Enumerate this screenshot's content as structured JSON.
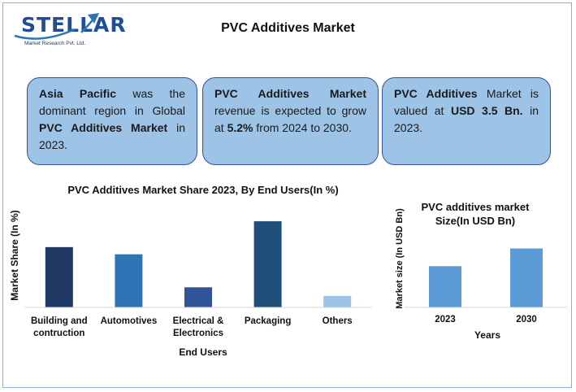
{
  "logo": {
    "word": "STELLAR",
    "subtitle": "Market Research Pvt. Ltd."
  },
  "header": {
    "title": "PVC Additives Market"
  },
  "info_boxes": [
    {
      "parts": [
        {
          "text": "Asia Pacific",
          "bold": true
        },
        {
          "text": " was the dominant region in Global ",
          "bold": false
        },
        {
          "text": "PVC Additives Market",
          "bold": true
        },
        {
          "text": " in 2023.",
          "bold": false
        }
      ]
    },
    {
      "parts": [
        {
          "text": "PVC Additives Market",
          "bold": true
        },
        {
          "text": " revenue is expected to grow at ",
          "bold": false
        },
        {
          "text": "5.2%",
          "bold": true
        },
        {
          "text": " from 2024 to 2030.",
          "bold": false
        }
      ]
    },
    {
      "parts": [
        {
          "text": "PVC Additives",
          "bold": true
        },
        {
          "text": " Market is valued at ",
          "bold": false
        },
        {
          "text": "USD 3.5 Bn.",
          "bold": true
        },
        {
          "text": " in 2023.",
          "bold": false
        }
      ]
    }
  ],
  "chart_data": [
    {
      "type": "bar",
      "title": "PVC Additives Market Share 2023, By End Users(In %)",
      "xlabel": "End Users",
      "ylabel": "Market Share (In %)",
      "categories": [
        "Building and contruction",
        "Automotives",
        "Electrical & Electronics",
        "Packaging",
        "Others"
      ],
      "category_lines": [
        [
          "Building and",
          "contruction"
        ],
        [
          "Automotives"
        ],
        [
          "Electrical &",
          "Electronics"
        ],
        [
          "Packaging"
        ],
        [
          "Others"
        ]
      ],
      "values": [
        21,
        18.5,
        7,
        30,
        4
      ],
      "ylim": [
        0,
        32
      ],
      "colors": [
        "#1f3864",
        "#2e75b6",
        "#2f5597",
        "#1f4e79",
        "#9dc3e6"
      ],
      "grid": false
    },
    {
      "type": "bar",
      "title": "PVC additives market Size(In USD Bn)",
      "title_lines": [
        "PVC additives market",
        "Size(In USD Bn)"
      ],
      "xlabel": "Years",
      "ylabel": "Market size (In USD Bn)",
      "categories": [
        "2023",
        "2030"
      ],
      "values": [
        3.5,
        5.0
      ],
      "ylim": [
        0,
        7.8
      ],
      "colors": [
        "#5b9bd5",
        "#5b9bd5"
      ],
      "grid": false
    }
  ]
}
